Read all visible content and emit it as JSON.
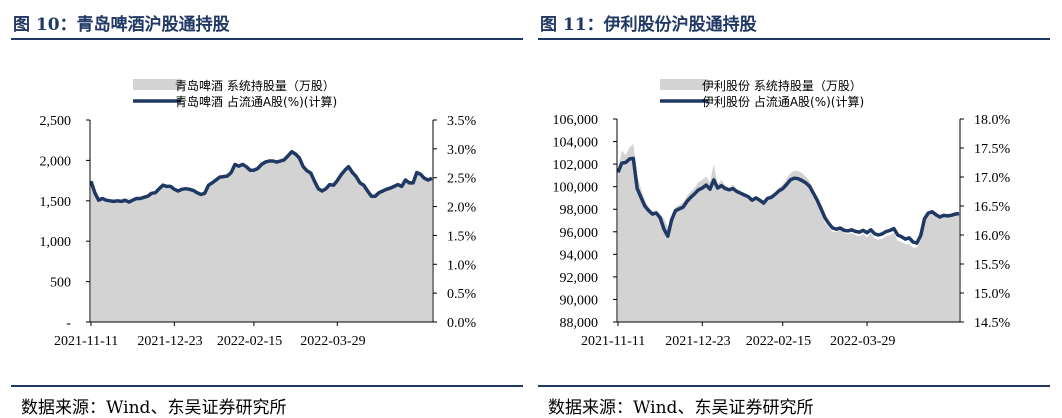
{
  "colors": {
    "title": "#1f3864",
    "area": "#d3d3d3",
    "line": "#1f3864",
    "rule": "#1f3864"
  },
  "source": "数据来源：Wind、东吴证券研究所",
  "chart_data": [
    {
      "type": "area+line",
      "title": "图 10：青岛啤酒沪股通持股",
      "x_tick_labels": [
        "2021-11-11",
        "2021-12-23",
        "2022-02-15",
        "2022-03-29"
      ],
      "left_axis": {
        "ylim": [
          0,
          2500
        ],
        "ticks": [
          0,
          500,
          1000,
          1500,
          2000,
          2500
        ],
        "tick_labels": [
          "-",
          "500",
          "1,000",
          "1,500",
          "2,000",
          "2,500"
        ]
      },
      "right_axis": {
        "ylim": [
          0,
          3.5
        ],
        "ticks": [
          0,
          0.5,
          1,
          1.5,
          2,
          2.5,
          3,
          3.5
        ],
        "tick_labels": [
          "0.0%",
          "0.5%",
          "1.0%",
          "1.5%",
          "2.0%",
          "2.5%",
          "3.0%",
          "3.5%"
        ]
      },
      "series": [
        {
          "name": "青岛啤酒 系统持股量（万股）",
          "kind": "area",
          "axis": "left",
          "values": [
            1740,
            1600,
            1510,
            1525,
            1510,
            1500,
            1490,
            1500,
            1490,
            1505,
            1485,
            1510,
            1530,
            1525,
            1540,
            1560,
            1590,
            1600,
            1650,
            1690,
            1680,
            1680,
            1640,
            1620,
            1640,
            1650,
            1640,
            1630,
            1600,
            1580,
            1590,
            1690,
            1720,
            1760,
            1790,
            1800,
            1810,
            1850,
            1950,
            1930,
            1950,
            1920,
            1880,
            1880,
            1900,
            1950,
            1980,
            1990,
            1990,
            1980,
            1990,
            2010,
            2060,
            2110,
            2080,
            2030,
            1920,
            1870,
            1840,
            1740,
            1650,
            1620,
            1650,
            1700,
            1690,
            1750,
            1820,
            1880,
            1920,
            1850,
            1800,
            1720,
            1690,
            1620,
            1560,
            1560,
            1600,
            1620,
            1640,
            1660,
            1680,
            1700,
            1680,
            1760,
            1720,
            1720,
            1850,
            1830,
            1780,
            1760,
            1780
          ]
        },
        {
          "name": "青岛啤酒 占流通A股(%)(计算)",
          "kind": "line",
          "axis": "right",
          "values": [
            2.44,
            2.24,
            2.11,
            2.14,
            2.11,
            2.1,
            2.09,
            2.1,
            2.09,
            2.11,
            2.08,
            2.11,
            2.14,
            2.14,
            2.16,
            2.18,
            2.23,
            2.24,
            2.31,
            2.37,
            2.35,
            2.35,
            2.3,
            2.27,
            2.3,
            2.31,
            2.3,
            2.28,
            2.24,
            2.21,
            2.23,
            2.37,
            2.41,
            2.46,
            2.51,
            2.52,
            2.53,
            2.59,
            2.73,
            2.7,
            2.73,
            2.69,
            2.63,
            2.63,
            2.66,
            2.73,
            2.77,
            2.79,
            2.79,
            2.77,
            2.79,
            2.81,
            2.88,
            2.95,
            2.91,
            2.84,
            2.69,
            2.62,
            2.58,
            2.44,
            2.31,
            2.27,
            2.31,
            2.38,
            2.37,
            2.45,
            2.55,
            2.63,
            2.69,
            2.59,
            2.52,
            2.41,
            2.37,
            2.27,
            2.18,
            2.18,
            2.24,
            2.27,
            2.3,
            2.32,
            2.35,
            2.38,
            2.35,
            2.46,
            2.41,
            2.41,
            2.59,
            2.56,
            2.49,
            2.46,
            2.49
          ]
        }
      ]
    },
    {
      "type": "area+line",
      "title": "图 11：伊利股份沪股通持股",
      "x_tick_labels": [
        "2021-11-11",
        "2021-12-23",
        "2022-02-15",
        "2022-03-29"
      ],
      "left_axis": {
        "ylim": [
          88000,
          106000
        ],
        "ticks": [
          88000,
          90000,
          92000,
          94000,
          96000,
          98000,
          100000,
          102000,
          104000,
          106000
        ],
        "tick_labels": [
          "88,000",
          "90,000",
          "92,000",
          "94,000",
          "96,000",
          "98,000",
          "100,000",
          "102,000",
          "104,000",
          "106,000"
        ]
      },
      "right_axis": {
        "ylim": [
          14.5,
          18.0
        ],
        "ticks": [
          14.5,
          15,
          15.5,
          16,
          16.5,
          17,
          17.5,
          18
        ],
        "tick_labels": [
          "14.5%",
          "15.0%",
          "15.5%",
          "16.0%",
          "16.5%",
          "17.0%",
          "17.5%",
          "18.0%"
        ]
      },
      "series": [
        {
          "name": "伊利股份 系统持股量（万股）",
          "kind": "area",
          "axis": "left",
          "values": [
            101500,
            103200,
            102800,
            103500,
            103800,
            101000,
            99800,
            98800,
            98200,
            97800,
            97900,
            97500,
            97200,
            96400,
            97200,
            98200,
            98400,
            98600,
            99200,
            99600,
            99900,
            100400,
            100600,
            100900,
            100400,
            102000,
            100200,
            100600,
            100100,
            99900,
            100200,
            99800,
            99600,
            99400,
            99200,
            98800,
            99000,
            98800,
            98400,
            98900,
            99100,
            99400,
            99900,
            100200,
            100700,
            101200,
            101400,
            101400,
            101200,
            100900,
            100500,
            99700,
            98800,
            97900,
            96800,
            96400,
            96000,
            96000,
            96200,
            95900,
            95800,
            95900,
            95700,
            95600,
            95800,
            95500,
            95900,
            95400,
            95300,
            95400,
            95600,
            95700,
            95900,
            95200,
            95100,
            94900,
            94900,
            94600,
            94600,
            95200,
            97100,
            97600,
            97700,
            97500,
            97300,
            97500,
            97400,
            97500,
            97600,
            97700
          ]
        },
        {
          "name": "伊利股份 占流通A股(%)(计算)",
          "kind": "line",
          "axis": "right",
          "values": [
            17.08,
            17.24,
            17.25,
            17.31,
            17.32,
            16.8,
            16.65,
            16.5,
            16.42,
            16.36,
            16.38,
            16.3,
            16.1,
            15.98,
            16.26,
            16.42,
            16.45,
            16.48,
            16.58,
            16.65,
            16.71,
            16.78,
            16.81,
            16.86,
            16.79,
            16.95,
            16.81,
            16.85,
            16.8,
            16.78,
            16.8,
            16.75,
            16.72,
            16.69,
            16.66,
            16.6,
            16.64,
            16.6,
            16.55,
            16.63,
            16.65,
            16.7,
            16.76,
            16.8,
            16.87,
            16.95,
            16.98,
            16.97,
            16.94,
            16.9,
            16.84,
            16.72,
            16.6,
            16.45,
            16.3,
            16.2,
            16.12,
            16.1,
            16.12,
            16.08,
            16.07,
            16.09,
            16.06,
            16.05,
            16.08,
            16.04,
            16.09,
            16.02,
            16.0,
            16.02,
            16.06,
            16.08,
            16.11,
            16.0,
            15.97,
            15.93,
            15.95,
            15.88,
            15.86,
            15.99,
            16.28,
            16.38,
            16.4,
            16.35,
            16.31,
            16.34,
            16.33,
            16.34,
            16.36,
            16.37
          ]
        }
      ]
    }
  ]
}
